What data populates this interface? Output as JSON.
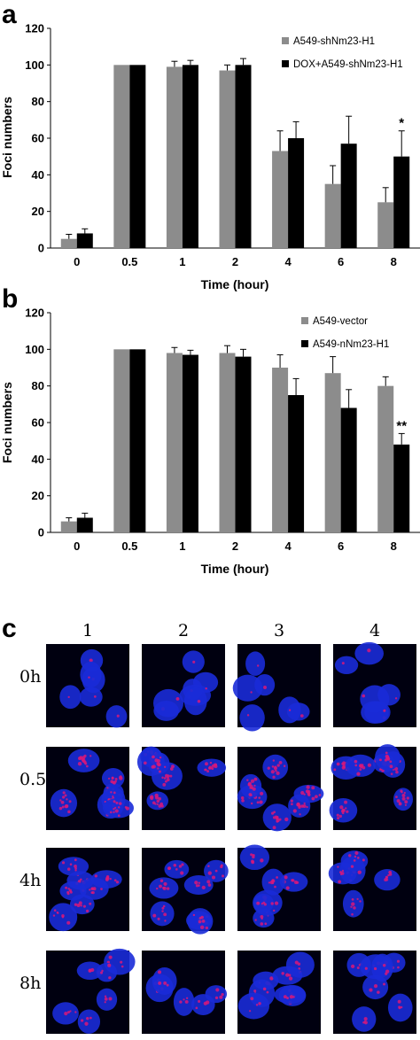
{
  "panels": [
    {
      "letter": "a"
    },
    {
      "letter": "b"
    },
    {
      "letter": "c"
    }
  ],
  "chart_data": [
    {
      "type": "bar",
      "panel": "a",
      "categories": [
        "0",
        "0.5",
        "1",
        "2",
        "4",
        "6",
        "8"
      ],
      "xlabel": "Time (hour)",
      "ylabel": "Foci numbers",
      "ylim": [
        0,
        120
      ],
      "yticks": [
        "0",
        "20",
        "40",
        "60",
        "80",
        "100",
        "120"
      ],
      "legend_position": "top-right",
      "series": [
        {
          "name": "A549-shNm23-H1",
          "color": "#8c8c8c",
          "values": [
            5,
            100,
            99,
            97,
            53,
            35,
            25
          ],
          "errors": [
            2.5,
            0,
            3,
            3,
            11,
            10,
            8
          ]
        },
        {
          "name": "DOX+A549-shNm23-H1",
          "color": "#000000",
          "values": [
            8,
            100,
            100,
            100,
            60,
            57,
            50
          ],
          "errors": [
            2.5,
            0,
            2.5,
            3.5,
            9,
            15,
            14
          ]
        }
      ],
      "annotations": [
        {
          "category": "8",
          "text": "*"
        }
      ]
    },
    {
      "type": "bar",
      "panel": "b",
      "categories": [
        "0",
        "0.5",
        "1",
        "2",
        "4",
        "6",
        "8"
      ],
      "xlabel": "Time (hour)",
      "ylabel": "Foci numbers",
      "ylim": [
        0,
        120
      ],
      "yticks": [
        "0",
        "20",
        "40",
        "60",
        "80",
        "100",
        "120"
      ],
      "legend_position": "top-right",
      "series": [
        {
          "name": "A549-vector",
          "color": "#8c8c8c",
          "values": [
            6,
            100,
            98,
            98,
            90,
            87,
            80
          ],
          "errors": [
            2,
            0,
            3,
            4,
            7,
            9,
            5
          ]
        },
        {
          "name": "A549-nNm23-H1",
          "color": "#000000",
          "values": [
            8,
            100,
            97,
            96,
            75,
            68,
            48
          ],
          "errors": [
            2.5,
            0,
            2.5,
            4,
            9,
            10,
            6
          ]
        }
      ],
      "annotations": [
        {
          "category": "8",
          "text": "**"
        }
      ]
    }
  ],
  "micrographs": {
    "columns": [
      "1",
      "2",
      "3",
      "4"
    ],
    "rows": [
      {
        "label": "0h",
        "foci_level": 0.05
      },
      {
        "label": "0.5h",
        "foci_level": 1.0
      },
      {
        "label": "4h",
        "foci_level": 0.6
      },
      {
        "label": "8h",
        "foci_level": 0.3
      }
    ],
    "colors": {
      "background": "#000010",
      "nucleus": "#1a2bd8",
      "foci": "#d8187a"
    }
  }
}
